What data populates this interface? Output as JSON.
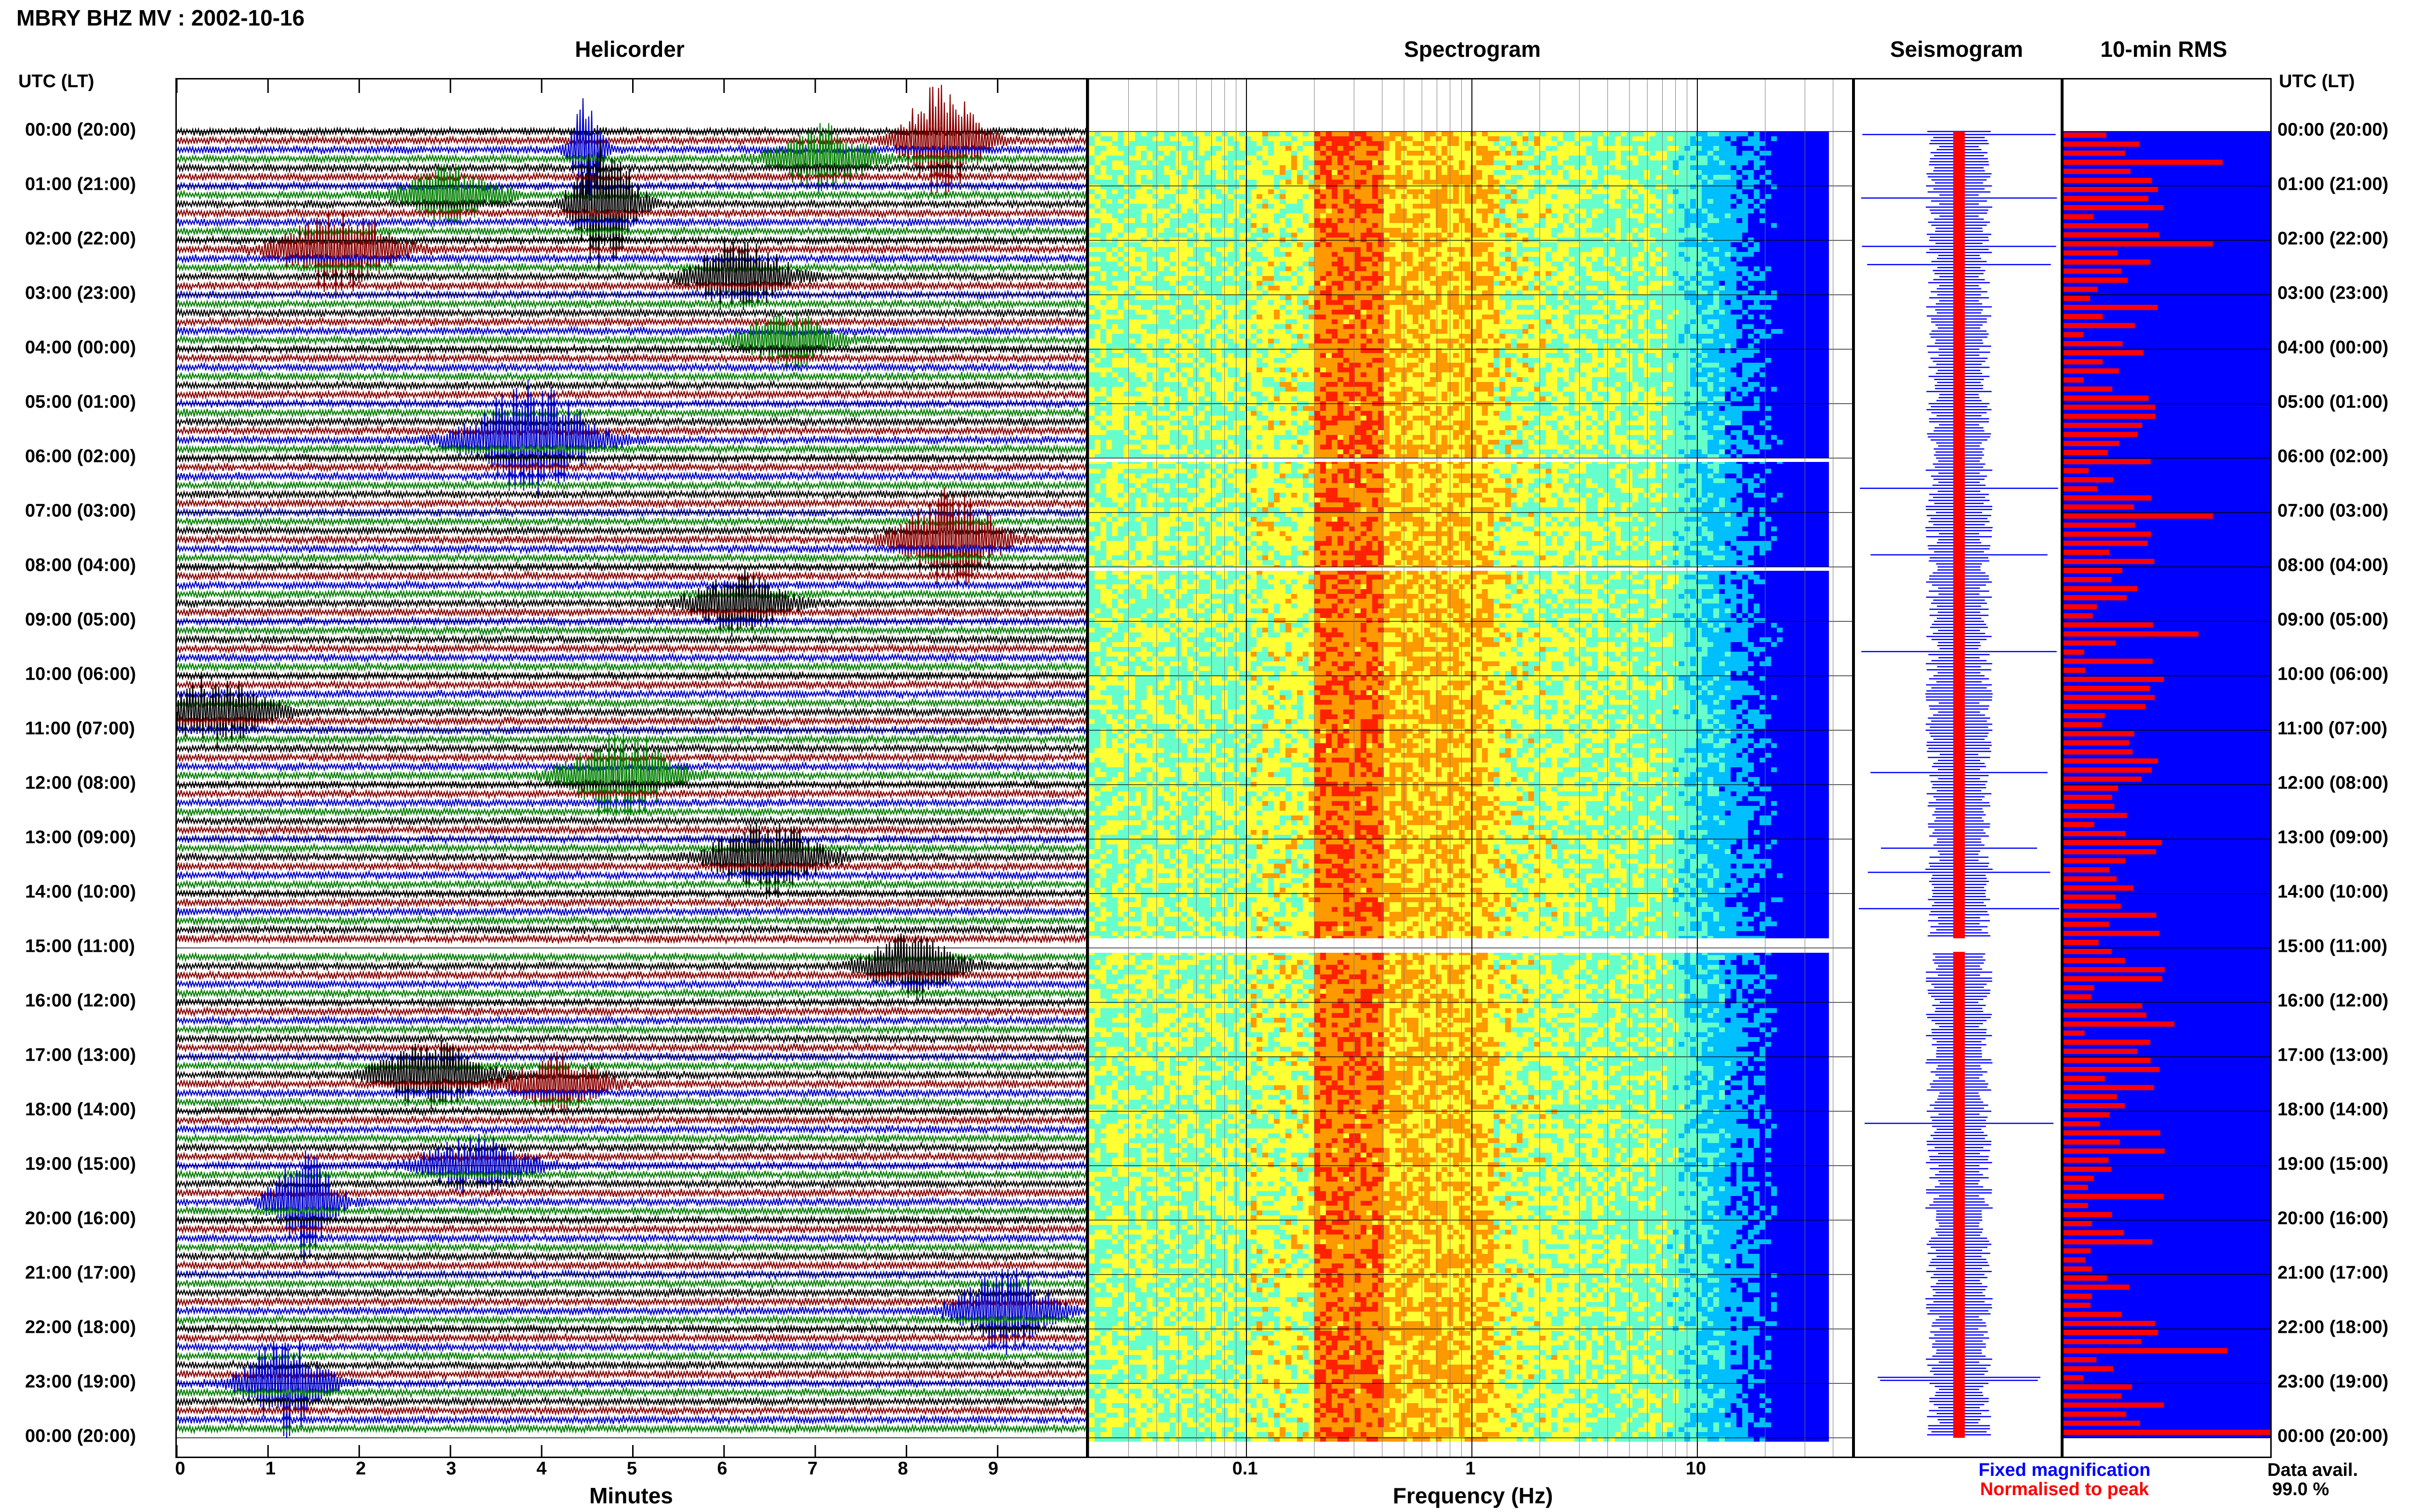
{
  "header": {
    "title": "MBRY BHZ MV : 2002-10-16"
  },
  "panels": {
    "helicorder": "Helicorder",
    "spectrogram": "Spectrogram",
    "seismogram": "Seismogram",
    "rms": "10-min RMS"
  },
  "time_axis": {
    "header_left": "UTC (LT)",
    "header_right": "UTC (LT)",
    "labels": [
      "00:00 (20:00)",
      "01:00 (21:00)",
      "02:00 (22:00)",
      "03:00 (23:00)",
      "04:00 (00:00)",
      "05:00 (01:00)",
      "06:00 (02:00)",
      "07:00 (03:00)",
      "08:00 (04:00)",
      "09:00 (05:00)",
      "10:00 (06:00)",
      "11:00 (07:00)",
      "12:00 (08:00)",
      "13:00 (09:00)",
      "14:00 (10:00)",
      "15:00 (11:00)",
      "16:00 (12:00)",
      "17:00 (13:00)",
      "18:00 (14:00)",
      "19:00 (15:00)",
      "20:00 (16:00)",
      "21:00 (17:00)",
      "22:00 (18:00)",
      "23:00 (19:00)",
      "00:00 (20:00)"
    ]
  },
  "x_axes": {
    "minutes_title": "Minutes",
    "minutes_ticks": [
      "0",
      "1",
      "2",
      "3",
      "4",
      "5",
      "6",
      "7",
      "8",
      "9"
    ],
    "frequency_title": "Frequency (Hz)",
    "frequency_ticks": [
      "0.1",
      "1",
      "10"
    ]
  },
  "legend": {
    "fixed": "Fixed magnification",
    "normalised": "Normalised to peak",
    "avail_label": "Data avail.",
    "avail_value": "99.0 %"
  },
  "colors": {
    "trace_cycle": [
      "#000000",
      "#8b0000",
      "#0000cc",
      "#008000"
    ],
    "rms_fill": "#0000ff",
    "rms_bar": "#ff0000",
    "fixed_text": "#0000ff",
    "normalised_text": "#ff0000"
  },
  "chart_data": {
    "type": "heatmap",
    "helicorder": {
      "x_unit": "minutes",
      "x_range": [
        0,
        10
      ],
      "rows_per_hour": 6,
      "hours": 24,
      "color_cycle": [
        "black",
        "darkred",
        "blue",
        "green"
      ],
      "data_gap_utc": "15:00"
    },
    "spectrogram": {
      "x_scale": "log",
      "x_range_hz": [
        0.02,
        50
      ],
      "peak_band_hz": [
        0.2,
        0.35
      ],
      "data_gaps_utc": [
        "06:00",
        "08:00",
        "15:00"
      ]
    },
    "rms": {
      "bin_minutes": 10,
      "relative_peaks_utc": [
        "00:30",
        "02:00",
        "07:00",
        "09:10",
        "15:20",
        "16:00",
        "22:10",
        "23:00"
      ]
    }
  }
}
